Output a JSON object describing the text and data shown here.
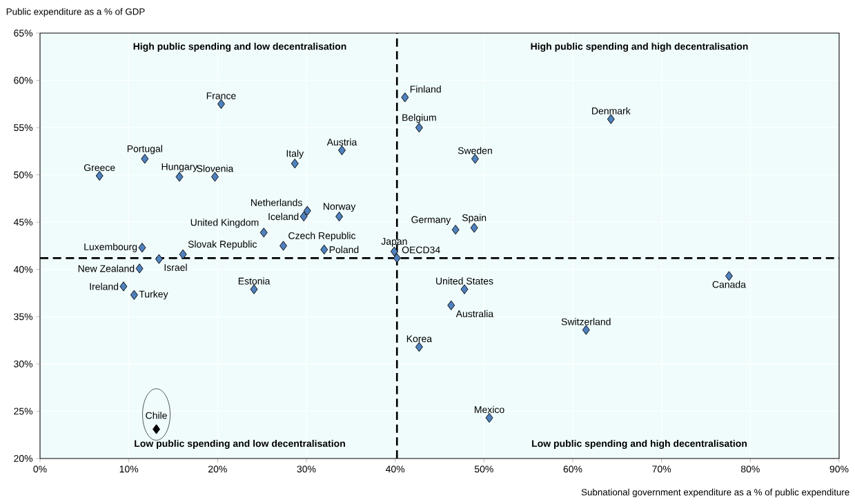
{
  "chart_data": {
    "type": "scatter",
    "xlabel": "Subnational government expenditure as a % of public expenditure",
    "ylabel": "Public expenditure as a % of GDP",
    "xlim": [
      0,
      90
    ],
    "ylim": [
      20,
      65
    ],
    "xticks": [
      {
        "value": 0,
        "label": "0%"
      },
      {
        "value": 10,
        "label": "10%"
      },
      {
        "value": 20,
        "label": "20%"
      },
      {
        "value": 30,
        "label": "30%"
      },
      {
        "value": 40,
        "label": "40%"
      },
      {
        "value": 50,
        "label": "50%"
      },
      {
        "value": 60,
        "label": "60%"
      },
      {
        "value": 70,
        "label": "70%"
      },
      {
        "value": 80,
        "label": "80%"
      },
      {
        "value": 90,
        "label": "90%"
      }
    ],
    "yticks": [
      {
        "value": 20,
        "label": "20%"
      },
      {
        "value": 25,
        "label": "25%"
      },
      {
        "value": 30,
        "label": "30%"
      },
      {
        "value": 35,
        "label": "35%"
      },
      {
        "value": 40,
        "label": "40%"
      },
      {
        "value": 45,
        "label": "45%"
      },
      {
        "value": 50,
        "label": "50%"
      },
      {
        "value": 55,
        "label": "55%"
      },
      {
        "value": 60,
        "label": "60%"
      },
      {
        "value": 65,
        "label": "65%"
      }
    ],
    "grid": true,
    "marker": "diamond",
    "series": [
      {
        "color": "#4f81bd",
        "x": [
          20.4,
          6.7,
          11.8,
          15.7,
          19.7,
          28.7,
          34.0,
          30.1,
          29.7,
          33.7,
          25.2,
          27.4,
          32.0,
          11.5,
          13.4,
          16.1,
          11.2,
          9.4,
          10.6,
          24.1,
          39.9,
          40.2,
          41.1,
          42.7,
          64.3,
          49.0,
          46.8,
          48.9,
          77.6,
          47.8,
          46.3,
          61.5,
          42.7,
          50.6
        ],
        "values": [
          57.5,
          49.9,
          51.7,
          49.8,
          49.8,
          51.2,
          52.6,
          46.2,
          45.6,
          45.6,
          43.9,
          42.5,
          42.1,
          42.3,
          41.1,
          41.6,
          40.1,
          38.2,
          37.3,
          37.9,
          41.9,
          41.2,
          58.2,
          55.0,
          55.9,
          51.7,
          44.2,
          44.4,
          39.3,
          37.9,
          36.2,
          33.6,
          31.8,
          24.3
        ]
      },
      {
        "color": "#000000",
        "x": [
          13.1
        ],
        "values": [
          23.1
        ]
      }
    ],
    "ref_lines": [
      {
        "axis": "x",
        "value": 40.2,
        "color": "#000000",
        "line_style": "dashed"
      },
      {
        "axis": "y",
        "value": 41.2,
        "color": "#000000",
        "line_style": "dashed"
      }
    ],
    "annotations": [
      "High public spending and low decentralisation",
      "High public spending and high decentralisation",
      "Low public spending and low decentralisation",
      "Low public spending and high decentralisation",
      {
        "text": "France",
        "x": 20.4,
        "y": 57.5
      },
      {
        "text": "Greece",
        "x": 6.7,
        "y": 49.9
      },
      {
        "text": "Portugal",
        "x": 11.8,
        "y": 51.7
      },
      {
        "text": "Hungary",
        "x": 15.7,
        "y": 49.8
      },
      {
        "text": "Slovenia",
        "x": 19.7,
        "y": 49.8
      },
      {
        "text": "Italy",
        "x": 28.7,
        "y": 51.2
      },
      {
        "text": "Austria",
        "x": 34.0,
        "y": 52.6
      },
      {
        "text": "Netherlands",
        "x": 30.1,
        "y": 46.2
      },
      {
        "text": "Iceland",
        "x": 29.7,
        "y": 45.6
      },
      {
        "text": "Norway",
        "x": 33.7,
        "y": 45.6
      },
      {
        "text": "United Kingdom",
        "x": 25.2,
        "y": 43.9
      },
      {
        "text": "Czech Republic",
        "x": 27.4,
        "y": 42.5
      },
      {
        "text": "Poland",
        "x": 32.0,
        "y": 42.1
      },
      {
        "text": "Luxembourg",
        "x": 11.5,
        "y": 42.3
      },
      {
        "text": "Israel",
        "x": 13.4,
        "y": 41.1
      },
      {
        "text": "Slovak Republic",
        "x": 16.1,
        "y": 41.6
      },
      {
        "text": "New Zealand",
        "x": 11.2,
        "y": 40.1
      },
      {
        "text": "Ireland",
        "x": 9.4,
        "y": 38.2
      },
      {
        "text": "Turkey",
        "x": 10.6,
        "y": 37.3
      },
      {
        "text": "Estonia",
        "x": 24.1,
        "y": 37.9
      },
      {
        "text": "Japan",
        "x": 39.9,
        "y": 41.9
      },
      {
        "text": "OECD34",
        "x": 40.2,
        "y": 41.2
      },
      {
        "text": "Finland",
        "x": 41.1,
        "y": 58.2
      },
      {
        "text": "Belgium",
        "x": 42.7,
        "y": 55.0
      },
      {
        "text": "Denmark",
        "x": 64.3,
        "y": 55.9
      },
      {
        "text": "Sweden",
        "x": 49.0,
        "y": 51.7
      },
      {
        "text": "Germany",
        "x": 46.8,
        "y": 44.2
      },
      {
        "text": "Spain",
        "x": 48.9,
        "y": 44.4
      },
      {
        "text": "Canada",
        "x": 77.6,
        "y": 39.3
      },
      {
        "text": "United States",
        "x": 47.8,
        "y": 37.9
      },
      {
        "text": "Australia",
        "x": 46.3,
        "y": 36.2
      },
      {
        "text": "Switzerland",
        "x": 61.5,
        "y": 33.6
      },
      {
        "text": "Korea",
        "x": 42.7,
        "y": 31.8
      },
      {
        "text": "Mexico",
        "x": 50.6,
        "y": 24.3
      },
      {
        "text": "Chile",
        "x": 13.1,
        "y": 23.1
      }
    ]
  }
}
